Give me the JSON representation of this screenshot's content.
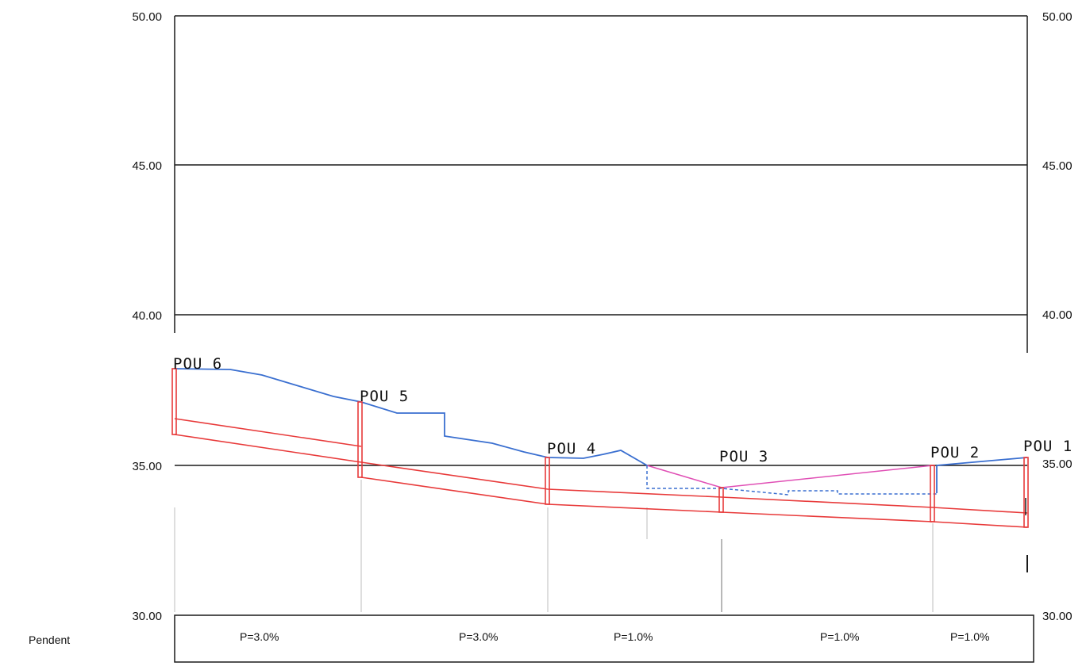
{
  "left_axis_labels": [
    "50.00",
    "45.00",
    "40.00",
    "35.00",
    "30.00"
  ],
  "right_axis_labels": [
    "50.00",
    "45.00",
    "40.00",
    "35.00",
    "30.00"
  ],
  "manholes": [
    {
      "label": "POU 6"
    },
    {
      "label": "POU 5"
    },
    {
      "label": "POU 4"
    },
    {
      "label": "POU 3"
    },
    {
      "label": "POU 2"
    },
    {
      "label": "POU 1"
    }
  ],
  "slope_row": {
    "label": "Pendent",
    "values": [
      "P=3.0%",
      "P=3.0%",
      "P=1.0%",
      "P=1.0%",
      "P=1.0%"
    ]
  },
  "colors": {
    "grid": "#1a1a1a",
    "terrain": "#3a6fd0",
    "pipe": "#e83a3a",
    "projected_terrain": "#e04fb5",
    "guide": "#c8c8c8"
  }
}
